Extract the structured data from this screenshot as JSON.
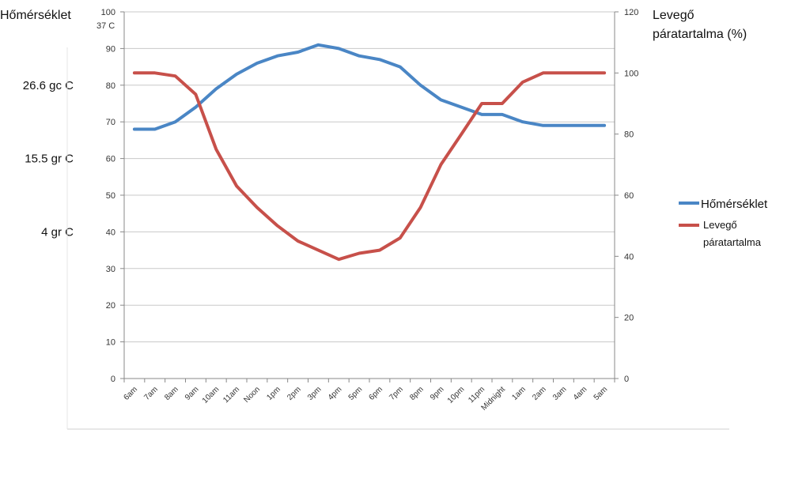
{
  "chart_data": {
    "type": "line",
    "left_axis_title": "Hőmérséklet",
    "left_axis_unit": "37 C",
    "right_axis_title_line1": "Levegő",
    "right_axis_title_line2": "páratartalma (%)",
    "y_left_ticks": [
      "0",
      "10",
      "20",
      "30",
      "40",
      "50",
      "60",
      "70",
      "80",
      "90",
      "100"
    ],
    "y_right_ticks": [
      "0",
      "20",
      "40",
      "60",
      "80",
      "100",
      "120"
    ],
    "y_left_lim": [
      0,
      100
    ],
    "y_right_lim": [
      0,
      120
    ],
    "celsius_labels": [
      {
        "text": "26.6 gc C",
        "value": 80
      },
      {
        "text": "15.5 gr C",
        "value": 60
      },
      {
        "text": "4 gr C",
        "value": 40
      }
    ],
    "categories": [
      "6am",
      "7am",
      "8am",
      "9am",
      "10am",
      "11am",
      "Noon",
      "1pm",
      "2pm",
      "3pm",
      "4pm",
      "5pm",
      "6pm",
      "7pm",
      "8pm",
      "9pm",
      "10pm",
      "11pm",
      "Midnight",
      "1am",
      "2am",
      "3am",
      "4am",
      "5am"
    ],
    "grid": true,
    "legend_position": "right",
    "legend": {
      "temp_label": "Hőmérséklet",
      "humidity_label_line1": "Levegő",
      "humidity_label_line2": "páratartalma"
    },
    "series": [
      {
        "name": "Hőmérséklet",
        "axis": "left",
        "color": "#4a86c5",
        "values": [
          68,
          68,
          70,
          74,
          79,
          83,
          86,
          88,
          89,
          91,
          90,
          88,
          87,
          85,
          80,
          76,
          74,
          72,
          72,
          70,
          69,
          69,
          69,
          69
        ]
      },
      {
        "name": "Levegő páratartalma",
        "axis": "right",
        "color": "#c7504a",
        "values": [
          100,
          100,
          99,
          93,
          75,
          63,
          56,
          50,
          45,
          42,
          39,
          41,
          42,
          46,
          56,
          70,
          80,
          90,
          90,
          97,
          100,
          100,
          100,
          100
        ]
      }
    ]
  }
}
